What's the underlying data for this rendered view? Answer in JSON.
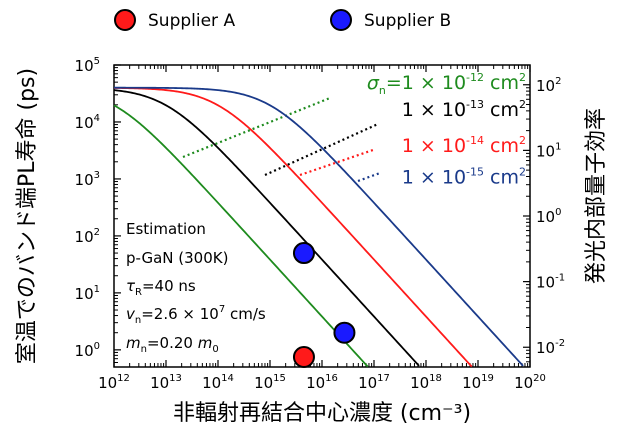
{
  "chart_data": {
    "type": "line",
    "xlabel": "非輻射再結合中心濃度 (cm⁻³)",
    "ylabel": "室温でのバンド端PL寿命 (ps)",
    "ylabel_right": "発光内部量子効率",
    "x_scale": "log",
    "y_scale": "log",
    "xlim": [
      1000000000000.0,
      1e+20
    ],
    "ylim": [
      0.5,
      100000
    ],
    "y2lim": [
      0.005,
      200
    ],
    "grid": false,
    "x_ticks": [
      {
        "value": 1000000000000.0,
        "label": "10",
        "exp": "12"
      },
      {
        "value": 10000000000000.0,
        "label": "10",
        "exp": "13"
      },
      {
        "value": 100000000000000.0,
        "label": "10",
        "exp": "14"
      },
      {
        "value": 1000000000000000.0,
        "label": "10",
        "exp": "15"
      },
      {
        "value": 1e+16,
        "label": "10",
        "exp": "16"
      },
      {
        "value": 1e+17,
        "label": "10",
        "exp": "17"
      },
      {
        "value": 1e+18,
        "label": "10",
        "exp": "18"
      },
      {
        "value": 1e+19,
        "label": "10",
        "exp": "19"
      },
      {
        "value": 1e+20,
        "label": "10",
        "exp": "20"
      }
    ],
    "y_ticks": [
      {
        "value": 1,
        "label": "10",
        "exp": "0"
      },
      {
        "value": 10,
        "label": "10",
        "exp": "1"
      },
      {
        "value": 100,
        "label": "10",
        "exp": "2"
      },
      {
        "value": 1000,
        "label": "10",
        "exp": "3"
      },
      {
        "value": 10000,
        "label": "10",
        "exp": "4"
      },
      {
        "value": 100000,
        "label": "10",
        "exp": "5"
      }
    ],
    "y2_ticks": [
      {
        "value": 0.01,
        "label": "10",
        "exp": "-2"
      },
      {
        "value": 0.1,
        "label": "10",
        "exp": "-1"
      },
      {
        "value": 1,
        "label": "10",
        "exp": "0"
      },
      {
        "value": 10,
        "label": "10",
        "exp": "1"
      },
      {
        "value": 100,
        "label": "10",
        "exp": "2"
      }
    ],
    "model": {
      "tau_R_ps": 40000,
      "v_n_cm_s": 26000000.0,
      "x_points": [
        1000000000000.0,
        1e+20
      ]
    },
    "series": [
      {
        "label_prefix": "σ",
        "label_sub": "n",
        "label_main": "=1 × 10",
        "label_exp": "-12",
        "label_unit": " cm",
        "label_unit_exp": "2",
        "sigma": 1e-12,
        "color": "#1e8b1e",
        "label_y2": 110,
        "line_y": 420
      },
      {
        "label_main": "1 × 10",
        "label_exp": "-13",
        "label_unit": " cm",
        "label_unit_exp": "2",
        "sigma": 1e-13,
        "color": "#000000",
        "label_y2": 43,
        "line_y": 370
      },
      {
        "label_main": "1 × 10",
        "label_exp": "-14",
        "label_unit": " cm",
        "label_unit_exp": "2",
        "sigma": 1e-14,
        "color": "#ff1a1a",
        "label_y2": 12,
        "line_y": 330
      },
      {
        "label_main": "1 × 10",
        "label_exp": "-15",
        "label_unit": " cm",
        "label_unit_exp": "2",
        "sigma": 1e-15,
        "color": "#1a3a8a",
        "label_y2": 4,
        "line_y": 280
      }
    ],
    "points": [
      {
        "name": "Supplier A",
        "x": 4500000000000000.0,
        "y": 0.75,
        "color": "#ff1a1a"
      },
      {
        "name": "Supplier B",
        "x": 4500000000000000.0,
        "y": 50,
        "color": "#1a1aff"
      },
      {
        "name": "Supplier B",
        "x": 2.7e+16,
        "y": 2.0,
        "color": "#1a1aff"
      }
    ],
    "legend": [
      {
        "name": "Supplier A",
        "color": "#ff1a1a"
      },
      {
        "name": "Supplier B",
        "color": "#1a1aff"
      }
    ],
    "legend_position": "top",
    "annotation": {
      "line1": "Estimation",
      "line2": "p-GaN (300K)",
      "line3_sym": "τ",
      "line3_sub": "R",
      "line3_rest": "=40 ns",
      "line4_sym": "v",
      "line4_sub": "n",
      "line4_mid": "=2.6 × 10",
      "line4_exp": "7",
      "line4_rest": " cm/s",
      "line5_sym": "m",
      "line5_sub": "n",
      "line5_mid": "=0.20 ",
      "line5_sym2": "m",
      "line5_sub2": "0"
    }
  }
}
